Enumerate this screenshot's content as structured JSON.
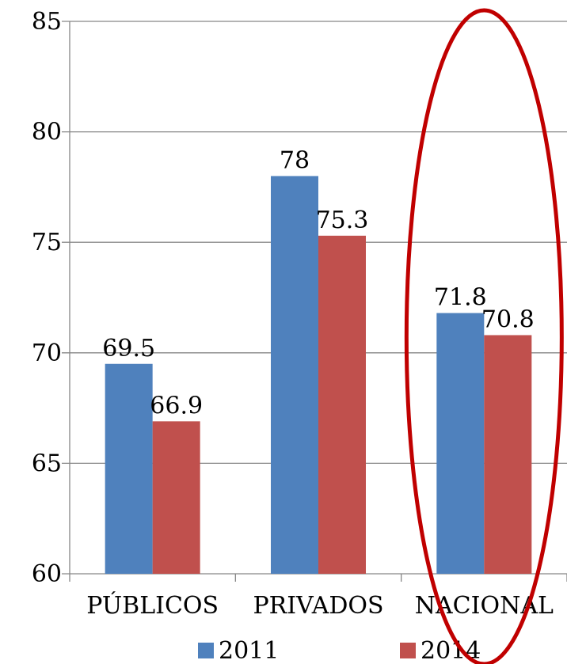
{
  "chart_data": {
    "type": "bar",
    "categories": [
      "PÚBLICOS",
      "PRIVADOS",
      "NACIONAL"
    ],
    "series": [
      {
        "name": "2011",
        "values": [
          69.5,
          78,
          71.8
        ],
        "labels": [
          "69.5",
          "78",
          "71.8"
        ]
      },
      {
        "name": "2014",
        "values": [
          66.9,
          75.3,
          70.8
        ],
        "labels": [
          "66.9",
          "75.3",
          "70.8"
        ]
      }
    ],
    "ylim": [
      60,
      85
    ],
    "yticks": [
      "60",
      "65",
      "70",
      "75",
      "80",
      "85"
    ],
    "title": "",
    "xlabel": "",
    "ylabel": "",
    "grid": true,
    "legend_position": "bottom",
    "annotation": "red ellipse highlighting NACIONAL"
  },
  "colors": {
    "series_2011": "#4F81BD",
    "series_2014": "#C0504D",
    "annotation": "#C00000",
    "grid": "#868686"
  }
}
